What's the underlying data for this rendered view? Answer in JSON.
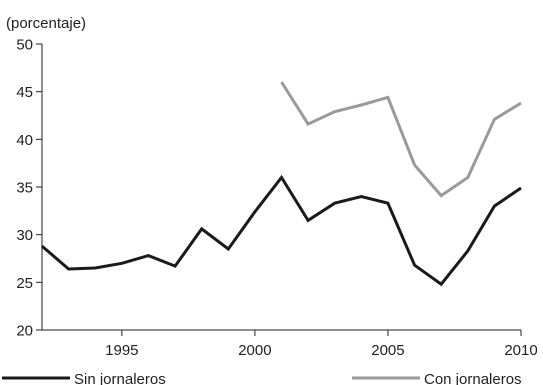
{
  "chart_data": {
    "type": "line",
    "unit_label": "(porcentaje)",
    "x": [
      1992,
      1993,
      1994,
      1995,
      1996,
      1997,
      1998,
      1999,
      2000,
      2001,
      2002,
      2003,
      2004,
      2005,
      2006,
      2007,
      2008,
      2009,
      2010
    ],
    "xlim": [
      1992,
      2010
    ],
    "ylim": [
      20,
      50
    ],
    "x_ticks": [
      1995,
      2000,
      2005,
      2010
    ],
    "y_ticks": [
      20,
      25,
      30,
      35,
      40,
      45,
      50
    ],
    "grid": false,
    "legend_position": "bottom",
    "series": [
      {
        "name": "Sin jornaleros",
        "color": "#1a1a1a",
        "values": [
          28.8,
          26.4,
          26.5,
          27.0,
          27.8,
          26.7,
          30.6,
          28.5,
          32.4,
          36.0,
          31.5,
          33.3,
          34.0,
          33.3,
          26.8,
          24.8,
          28.3,
          33.0,
          34.9
        ]
      },
      {
        "name": "Con jornaleros",
        "color": "#9a9a9a",
        "values": [
          null,
          null,
          null,
          null,
          null,
          null,
          null,
          null,
          null,
          46.0,
          41.6,
          42.9,
          43.6,
          44.4,
          37.3,
          34.1,
          36.0,
          42.1,
          43.8
        ]
      }
    ]
  }
}
